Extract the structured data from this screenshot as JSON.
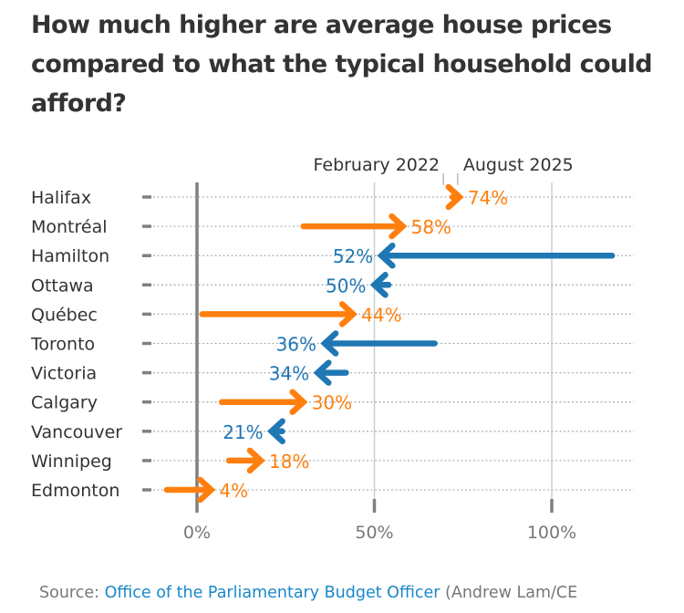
{
  "title": "How much higher are average house prices compared to what the typical household could afford?",
  "source": {
    "prefix": "Source: ",
    "link_text": "Office of the Parliamentary Budget Officer",
    "suffix": " (Andrew Lam/CE"
  },
  "colors": {
    "increase": "#ff7f0e",
    "decrease": "#1f77b4",
    "text": "#333333",
    "axis_text": "#777777"
  },
  "chart_data": {
    "type": "arrow-dot-plot",
    "title": "How much higher are average house prices compared to what the typical household could afford?",
    "xlabel": "",
    "ylabel": "",
    "xlim": [
      -17,
      122
    ],
    "x_ticks": [
      0,
      50,
      100
    ],
    "x_tick_labels": [
      "0%",
      "50%",
      "100%"
    ],
    "grid": true,
    "legend": {
      "from_label": "February 2022",
      "to_label": "August 2025",
      "placement": "top"
    },
    "categories": [
      "Halifax",
      "Montréal",
      "Hamilton",
      "Ottawa",
      "Québec",
      "Toronto",
      "Victoria",
      "Calgary",
      "Vancouver",
      "Winnipeg",
      "Edmonton"
    ],
    "series": [
      {
        "name": "February 2022",
        "values": [
          72,
          30,
          117,
          54,
          1.5,
          67,
          42,
          7,
          24,
          9,
          -8.5
        ]
      },
      {
        "name": "August 2025",
        "values": [
          74,
          58,
          52,
          50,
          44,
          36,
          34,
          30,
          21,
          18,
          4
        ]
      }
    ],
    "value_labels": [
      "74%",
      "58%",
      "52%",
      "50%",
      "44%",
      "36%",
      "34%",
      "30%",
      "21%",
      "18%",
      "4%"
    ]
  }
}
